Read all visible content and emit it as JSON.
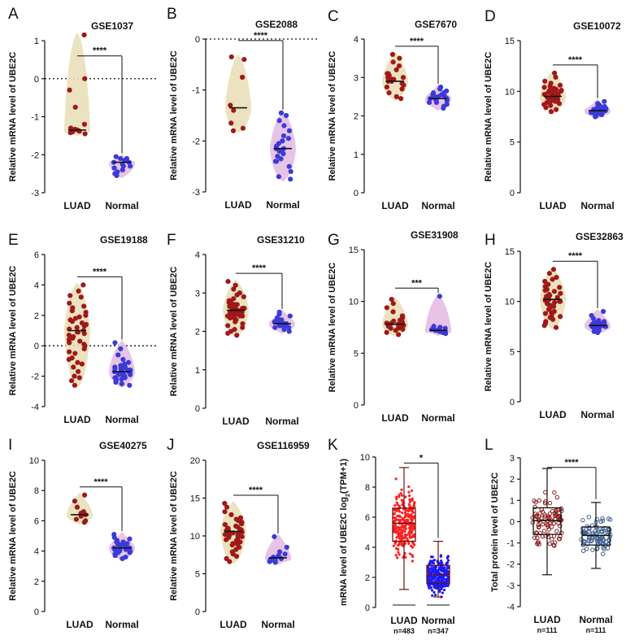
{
  "figure": {
    "colors": {
      "luad_point": "#a01818",
      "normal_point": "#3b3bd8",
      "luad_violin": "#e9dfb9",
      "normal_violin": "#e6bde6",
      "k_luad": "#ff2020",
      "k_normal": "#1a1aff",
      "l_luad": "#8b1a1a",
      "l_normal": "#3f5f91"
    }
  },
  "chart_data": [
    {
      "letter": "A",
      "type": "scatter",
      "title": "GSE1037",
      "ylabel": "Relative mRNA level of UBE2C",
      "categories": [
        "LUAD",
        "Normal"
      ],
      "ylim": [
        -3,
        1
      ],
      "yticks": [
        "-3",
        "-2",
        "-1",
        "0",
        "1"
      ],
      "yvals": [
        -3,
        -2,
        -1,
        0,
        1
      ],
      "zero_line": true,
      "significance": "****",
      "series": [
        {
          "name": "LUAD",
          "values": [
            1.15,
            0.0,
            -0.3,
            -0.75,
            -1.2,
            -1.3,
            -1.33,
            -1.35,
            -1.38,
            -1.4,
            -1.42,
            -1.45
          ],
          "median": -1.35
        },
        {
          "name": "Normal",
          "values": [
            -2.05,
            -2.1,
            -2.15,
            -2.2,
            -2.25,
            -2.3,
            -2.35,
            -2.4,
            -2.45,
            -2.5,
            -2.55,
            -2.2,
            -2.1,
            -2.3
          ],
          "median": -2.2
        }
      ]
    },
    {
      "letter": "B",
      "type": "scatter",
      "title": "GSE2088",
      "ylabel": "Relative mRNA level of UBE2C",
      "categories": [
        "LUAD",
        "Normal"
      ],
      "ylim": [
        -3,
        0
      ],
      "yticks": [
        "-3",
        "-2",
        "-1",
        "0"
      ],
      "yvals": [
        -3,
        -2,
        -1,
        0
      ],
      "zero_line": true,
      "significance": "****",
      "series": [
        {
          "name": "LUAD",
          "values": [
            -0.35,
            -0.4,
            -0.75,
            -1.3,
            -1.4,
            -1.65,
            -1.75,
            -1.8
          ],
          "median": -1.35
        },
        {
          "name": "Normal",
          "values": [
            -1.45,
            -1.5,
            -1.6,
            -1.7,
            -1.8,
            -1.9,
            -2.0,
            -2.05,
            -2.1,
            -2.15,
            -2.2,
            -2.25,
            -2.3,
            -2.35,
            -2.4,
            -2.5,
            -2.6,
            -2.7,
            -2.75,
            -2.2,
            -2.0,
            -1.95,
            -2.4,
            -2.15
          ],
          "median": -2.15
        }
      ]
    },
    {
      "letter": "C",
      "type": "scatter",
      "title": "GSE7670",
      "ylabel": "Relative mRNA level of UBE2C",
      "categories": [
        "LUAD",
        "Normal"
      ],
      "ylim": [
        0,
        4
      ],
      "yticks": [
        "0",
        "1",
        "2",
        "3",
        "4"
      ],
      "yvals": [
        0,
        1,
        2,
        3,
        4
      ],
      "zero_line": false,
      "significance": "****",
      "series": [
        {
          "name": "LUAD",
          "values": [
            3.6,
            3.5,
            3.4,
            3.3,
            3.2,
            3.1,
            3.05,
            3.0,
            2.95,
            2.9,
            2.9,
            2.85,
            2.8,
            2.75,
            2.7,
            2.6,
            2.5,
            2.45,
            3.0,
            2.95,
            3.1
          ],
          "median": 2.9
        },
        {
          "name": "Normal",
          "values": [
            2.75,
            2.7,
            2.65,
            2.6,
            2.55,
            2.5,
            2.5,
            2.45,
            2.45,
            2.4,
            2.4,
            2.35,
            2.3,
            2.25,
            2.2,
            2.5,
            2.55,
            2.6,
            2.45,
            2.35
          ],
          "median": 2.45
        }
      ]
    },
    {
      "letter": "D",
      "type": "scatter",
      "title": "GSE10072",
      "ylabel": "Relative mRNA level of UBE2C",
      "categories": [
        "LUAD",
        "Normal"
      ],
      "ylim": [
        0,
        15
      ],
      "yticks": [
        "0",
        "5",
        "10",
        "15"
      ],
      "yvals": [
        0,
        5,
        10,
        15
      ],
      "zero_line": false,
      "significance": "****",
      "series": [
        {
          "name": "LUAD",
          "values": [
            11.8,
            11.4,
            11.0,
            10.8,
            10.6,
            10.4,
            10.3,
            10.2,
            10.1,
            10.0,
            9.9,
            9.8,
            9.7,
            9.6,
            9.5,
            9.4,
            9.3,
            9.2,
            9.1,
            9.0,
            8.9,
            8.8,
            8.7,
            8.6,
            8.4,
            8.2,
            8.0,
            9.5,
            9.6,
            9.8,
            10.0,
            9.2,
            9.0,
            10.5,
            9.7,
            9.3,
            8.9,
            10.1,
            9.4,
            9.9
          ],
          "median": 9.5
        },
        {
          "name": "Normal",
          "values": [
            9.0,
            8.8,
            8.6,
            8.5,
            8.4,
            8.3,
            8.2,
            8.2,
            8.1,
            8.1,
            8.0,
            8.0,
            7.9,
            7.9,
            7.8,
            7.7,
            7.6,
            7.5,
            8.3,
            8.1,
            8.0,
            7.9,
            8.2,
            8.4,
            8.0,
            7.8,
            8.1,
            8.3
          ],
          "median": 8.1
        }
      ]
    },
    {
      "letter": "E",
      "type": "scatter",
      "title": "GSE19188",
      "ylabel": "Relative mRNA level of UBE2C",
      "categories": [
        "LUAD",
        "Normal"
      ],
      "ylim": [
        -4,
        6
      ],
      "yticks": [
        "-4",
        "-2",
        "0",
        "2",
        "4",
        "6"
      ],
      "yvals": [
        -4,
        -2,
        0,
        2,
        4,
        6
      ],
      "zero_line": true,
      "significance": "****",
      "series": [
        {
          "name": "LUAD",
          "values": [
            4.0,
            3.6,
            3.2,
            2.8,
            2.5,
            2.2,
            2.0,
            1.8,
            1.6,
            1.4,
            1.2,
            1.0,
            0.9,
            0.8,
            0.6,
            0.4,
            0.2,
            0.0,
            -0.2,
            -0.5,
            -0.8,
            -1.1,
            -1.4,
            -1.7,
            -2.0,
            -2.3,
            -2.6,
            1.5,
            0.9,
            1.1,
            2.3,
            0.3,
            -0.4,
            1.7,
            0.7,
            -1.2,
            2.6,
            3.3,
            -2.1,
            1.3,
            0.5,
            -0.9,
            1.9,
            0.1
          ],
          "median": 1.0
        },
        {
          "name": "Normal",
          "values": [
            0.2,
            -0.2,
            -0.6,
            -0.9,
            -1.1,
            -1.3,
            -1.4,
            -1.5,
            -1.6,
            -1.7,
            -1.8,
            -1.9,
            -2.0,
            -2.1,
            -2.2,
            -2.3,
            -2.4,
            -2.6,
            -1.5,
            -1.7,
            -1.9,
            -1.6,
            -1.8,
            -2.0,
            -1.2,
            -1.4,
            -2.2,
            -1.7,
            -1.9,
            -2.5,
            -1.3,
            -1.6,
            -2.1,
            -1.8,
            -1.5
          ],
          "median": -1.7
        }
      ]
    },
    {
      "letter": "F",
      "type": "scatter",
      "title": "GSE31210",
      "ylabel": "Relative mRNA level of UBE2C",
      "categories": [
        "LUAD",
        "Normal"
      ],
      "ylim": [
        0,
        4
      ],
      "yticks": [
        "0",
        "1",
        "2",
        "3",
        "4"
      ],
      "yvals": [
        0,
        1,
        2,
        3,
        4
      ],
      "zero_line": false,
      "significance": "****",
      "series": [
        {
          "name": "LUAD",
          "values": [
            3.3,
            3.2,
            3.1,
            3.0,
            2.95,
            2.9,
            2.85,
            2.8,
            2.75,
            2.7,
            2.7,
            2.65,
            2.65,
            2.6,
            2.6,
            2.6,
            2.55,
            2.55,
            2.55,
            2.5,
            2.5,
            2.5,
            2.5,
            2.45,
            2.45,
            2.45,
            2.4,
            2.4,
            2.35,
            2.35,
            2.3,
            2.3,
            2.25,
            2.2,
            2.15,
            2.1,
            2.05,
            2.0,
            1.95,
            1.9,
            2.6,
            2.55,
            2.5,
            2.65,
            2.45,
            2.7,
            2.4,
            2.6,
            2.55,
            2.5,
            2.6,
            2.45,
            2.75,
            2.35,
            2.55,
            2.6,
            2.5,
            2.5,
            2.65,
            2.4
          ],
          "median": 2.55
        },
        {
          "name": "Normal",
          "values": [
            2.5,
            2.45,
            2.4,
            2.35,
            2.3,
            2.3,
            2.25,
            2.25,
            2.2,
            2.2,
            2.2,
            2.15,
            2.15,
            2.1,
            2.1,
            2.05,
            2.0,
            2.25,
            2.2,
            2.3,
            2.15,
            2.2
          ],
          "median": 2.2
        }
      ]
    },
    {
      "letter": "G",
      "type": "scatter",
      "title": "GSE31908",
      "ylabel": "Relative mRNA level of UBE2C",
      "categories": [
        "LUAD",
        "Normal"
      ],
      "ylim": [
        0,
        15
      ],
      "yticks": [
        "0",
        "5",
        "10",
        "15"
      ],
      "yvals": [
        0,
        5,
        10,
        15
      ],
      "zero_line": false,
      "significance": "***",
      "series": [
        {
          "name": "LUAD",
          "values": [
            10.2,
            9.8,
            9.4,
            9.0,
            8.6,
            8.4,
            8.2,
            8.0,
            7.9,
            7.8,
            7.8,
            7.7,
            7.6,
            7.5,
            7.4,
            7.3,
            7.2,
            7.0,
            6.8,
            8.1,
            7.9,
            7.7,
            7.6,
            8.0,
            7.5,
            7.8,
            7.4,
            7.7
          ],
          "median": 7.8
        },
        {
          "name": "Normal",
          "values": [
            10.5,
            7.6,
            7.5,
            7.4,
            7.3,
            7.2,
            7.2,
            7.1,
            7.1,
            7.0,
            7.0,
            6.9,
            7.3,
            7.2,
            7.1
          ],
          "median": 7.2
        }
      ]
    },
    {
      "letter": "H",
      "type": "scatter",
      "title": "GSE32863",
      "ylabel": "Relative mRNA level of UBE2C",
      "categories": [
        "LUAD",
        "Normal"
      ],
      "ylim": [
        0,
        15
      ],
      "yticks": [
        "0",
        "5",
        "10",
        "15"
      ],
      "yvals": [
        0,
        5,
        10,
        15
      ],
      "zero_line": false,
      "significance": "****",
      "series": [
        {
          "name": "LUAD",
          "values": [
            13.2,
            12.8,
            12.4,
            12.0,
            11.7,
            11.4,
            11.2,
            11.0,
            10.8,
            10.6,
            10.4,
            10.2,
            10.0,
            9.8,
            9.6,
            9.4,
            9.2,
            9.0,
            8.8,
            8.6,
            8.4,
            8.2,
            8.0,
            7.8,
            7.6,
            7.4,
            10.3,
            10.1,
            9.9,
            10.5,
            11.5,
            9.7,
            10.7,
            8.9,
            11.1,
            10.2,
            9.5,
            12.2,
            8.5,
            10.0
          ],
          "median": 10.2
        },
        {
          "name": "Normal",
          "values": [
            9.0,
            8.6,
            8.3,
            8.1,
            8.0,
            7.9,
            7.8,
            7.8,
            7.7,
            7.7,
            7.6,
            7.6,
            7.5,
            7.5,
            7.4,
            7.3,
            7.2,
            7.1,
            7.0,
            6.9,
            7.7,
            7.6,
            7.8,
            7.5,
            7.9,
            7.4,
            7.6,
            7.7
          ],
          "median": 7.6
        }
      ]
    },
    {
      "letter": "I",
      "type": "scatter",
      "title": "GSE40275",
      "ylabel": "Relative mRNA level of UBE2C",
      "categories": [
        "LUAD",
        "Normal"
      ],
      "ylim": [
        0,
        10
      ],
      "yticks": [
        "0",
        "2",
        "4",
        "6",
        "8",
        "10"
      ],
      "yvals": [
        0,
        2,
        4,
        6,
        8,
        10
      ],
      "zero_line": false,
      "significance": "****",
      "series": [
        {
          "name": "LUAD",
          "values": [
            7.7,
            7.3,
            6.9,
            6.6,
            6.5,
            6.4,
            6.3,
            6.1,
            6.0,
            5.9
          ],
          "median": 6.4
        },
        {
          "name": "Normal",
          "values": [
            5.1,
            4.9,
            4.8,
            4.7,
            4.6,
            4.5,
            4.4,
            4.4,
            4.3,
            4.3,
            4.2,
            4.2,
            4.1,
            4.1,
            4.0,
            3.9,
            3.8,
            3.7,
            3.6,
            3.5,
            4.5,
            4.3,
            4.2,
            4.0,
            4.6,
            4.1,
            3.9,
            4.4
          ],
          "median": 4.2
        }
      ]
    },
    {
      "letter": "J",
      "type": "scatter",
      "title": "GSE116959",
      "ylabel": "Relative mRNA level of UBE2C",
      "categories": [
        "LUAD",
        "Normal"
      ],
      "ylim": [
        0,
        20
      ],
      "yticks": [
        "0",
        "5",
        "10",
        "15",
        "20"
      ],
      "yvals": [
        0,
        5,
        10,
        15,
        20
      ],
      "zero_line": false,
      "significance": "****",
      "series": [
        {
          "name": "LUAD",
          "values": [
            14.3,
            13.8,
            13.2,
            12.8,
            12.4,
            12.0,
            11.8,
            11.5,
            11.2,
            11.0,
            10.8,
            10.6,
            10.4,
            10.2,
            10.0,
            9.8,
            9.6,
            9.4,
            9.2,
            9.0,
            8.8,
            8.5,
            8.2,
            7.9,
            7.6,
            7.3,
            7.0,
            6.6,
            10.5,
            10.9,
            11.3,
            9.9,
            10.7,
            11.6,
            9.5,
            10.1,
            12.2,
            8.9,
            10.3,
            11.0
          ],
          "median": 10.6
        },
        {
          "name": "Normal",
          "values": [
            9.9,
            8.5,
            7.9,
            7.6,
            7.4,
            7.2,
            7.0,
            6.9,
            6.8,
            6.7,
            6.6,
            6.5,
            7.3
          ],
          "median": 7.1
        }
      ]
    },
    {
      "letter": "K",
      "type": "box",
      "ylabel": "mRNA  level of UBE2C log2(TPM+1)",
      "ylabel_main": "mRNA  level of UBE2C log",
      "ylabel_sub": "2",
      "ylabel_tail": "(TPM+1)",
      "categories": [
        "LUAD",
        "Normal"
      ],
      "ylim": [
        0,
        10
      ],
      "yticks": [
        "0",
        "2",
        "4",
        "6",
        "8",
        "10"
      ],
      "yvals": [
        0,
        2,
        4,
        6,
        8,
        10
      ],
      "significance": "*",
      "n_labels": [
        "n=483",
        "n=347"
      ],
      "series": [
        {
          "name": "LUAD",
          "n": 483,
          "q1": 4.4,
          "median": 5.6,
          "q3": 6.6,
          "whisker_low": 1.2,
          "whisker_high": 9.3
        },
        {
          "name": "Normal",
          "n": 347,
          "q1": 1.6,
          "median": 2.2,
          "q3": 2.8,
          "whisker_low": 0.7,
          "whisker_high": 4.4
        }
      ]
    },
    {
      "letter": "L",
      "type": "box",
      "ylabel": "Total protein  level of  UBE2C",
      "categories": [
        "LUAD",
        "Normal"
      ],
      "ylim": [
        -4,
        3
      ],
      "yticks": [
        "-4",
        "-3",
        "-2",
        "-1",
        "0",
        "1",
        "2",
        "3"
      ],
      "yvals": [
        -4,
        -3,
        -2,
        -1,
        0,
        1,
        2,
        3
      ],
      "significance": "****",
      "n_labels": [
        "n=111",
        "n=111"
      ],
      "series": [
        {
          "name": "LUAD",
          "n": 111,
          "q1": -0.6,
          "median": 0.05,
          "q3": 0.65,
          "whisker_low": -2.5,
          "whisker_high": 2.5
        },
        {
          "name": "Normal",
          "n": 111,
          "q1": -1.1,
          "median": -0.65,
          "q3": -0.25,
          "whisker_low": -2.2,
          "whisker_high": 0.9
        }
      ]
    }
  ]
}
